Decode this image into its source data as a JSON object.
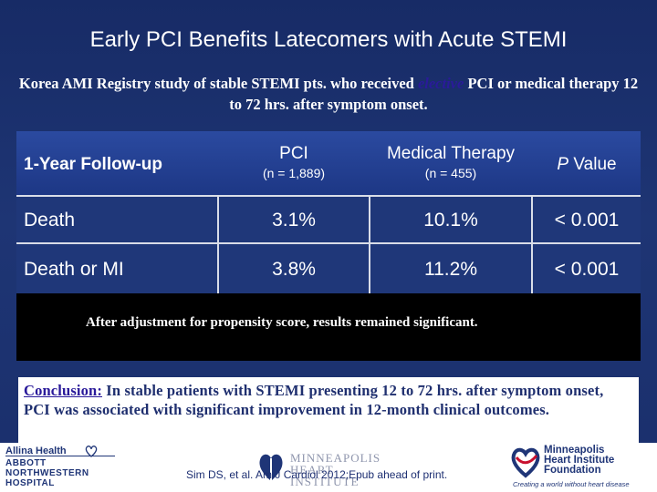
{
  "slide": {
    "title": "Early PCI Benefits Latecomers with Acute STEMI",
    "subtitle_pre": "Korea AMI Registry study of stable STEMI pts. who received ",
    "subtitle_em": "elective",
    "subtitle_post": " PCI or medical therapy 12 to 72 hrs. after symptom onset."
  },
  "table": {
    "header": {
      "label": "1-Year Follow-up",
      "col1_title": "PCI",
      "col1_sub": "(n = 1,889)",
      "col2_title": "Medical Therapy",
      "col2_sub": "(n = 455)",
      "col3_title_italic": "P",
      "col3_title_rest": " Value"
    },
    "rows": [
      {
        "label": "Death",
        "pci": "3.1%",
        "medical": "10.1%",
        "p": "< 0.001"
      },
      {
        "label": "Death or MI",
        "pci": "3.8%",
        "medical": "11.2%",
        "p": "< 0.001"
      }
    ],
    "note": "After adjustment for propensity score, results remained significant."
  },
  "conclusion": {
    "label": "Conclusion:",
    "text": " In stable patients with STEMI presenting 12 to 72 hrs. after symptom onset, PCI was associated with significant improvement in 12-month clinical outcomes."
  },
  "footer": {
    "citation": "Sim DS, et al. Am J Cardiol 2012;Epub ahead of print.",
    "logo_left_line1": "Allina Health",
    "logo_left_line2": "ABBOTT",
    "logo_left_line3": "NORTHWESTERN",
    "logo_left_line4": "HOSPITAL",
    "logo_mid_line1": "MINNEAPOLIS",
    "logo_mid_line2": "HEART",
    "logo_mid_line3": "INSTITUTE",
    "logo_right_line1": "Minneapolis",
    "logo_right_line2": "Heart Institute",
    "logo_right_line3": "Foundation",
    "logo_right_tagline": "Creating a world without heart disease",
    "brand_color": "#1f3577",
    "accent_red": "#c8102e"
  }
}
